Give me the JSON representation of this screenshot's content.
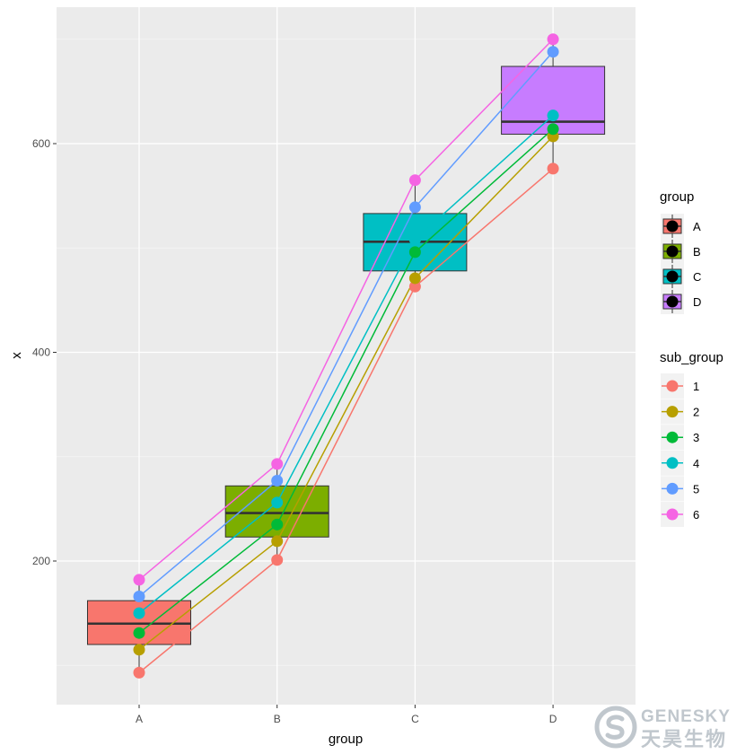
{
  "chart_data": {
    "type": "boxplot",
    "title": "",
    "xlabel": "group",
    "ylabel": "x",
    "ylim": [
      70,
      720
    ],
    "y_ticks": [
      200,
      400,
      600
    ],
    "y_minor_ticks": [
      100,
      300,
      500,
      700
    ],
    "grid": true,
    "categories": [
      "A",
      "B",
      "C",
      "D"
    ],
    "boxes": [
      {
        "group": "A",
        "min": 93,
        "q1": 120,
        "median": 140,
        "q3": 162,
        "max": 182,
        "color": "#F8766D"
      },
      {
        "group": "B",
        "min": 201,
        "q1": 223,
        "median": 246,
        "q3": 272,
        "max": 293,
        "color": "#7CAE00"
      },
      {
        "group": "C",
        "min": 463,
        "q1": 478,
        "median": 506,
        "q3": 533,
        "max": 565,
        "color": "#00BFC4"
      },
      {
        "group": "D",
        "min": 576,
        "q1": 609,
        "median": 621,
        "q3": 674,
        "max": 700,
        "color": "#C77CFF"
      }
    ],
    "series": [
      {
        "name": "1",
        "color": "#F8766D",
        "values": [
          93,
          201,
          463,
          576
        ]
      },
      {
        "name": "2",
        "color": "#B79F00",
        "values": [
          115,
          219,
          471,
          607
        ]
      },
      {
        "name": "3",
        "color": "#00BA38",
        "values": [
          131,
          235,
          496,
          614
        ]
      },
      {
        "name": "4",
        "color": "#00BFC4",
        "values": [
          150,
          256,
          508,
          627
        ]
      },
      {
        "name": "5",
        "color": "#619CFF",
        "values": [
          166,
          277,
          539,
          688
        ]
      },
      {
        "name": "6",
        "color": "#F564E3",
        "values": [
          182,
          293,
          565,
          700
        ]
      }
    ],
    "legends": [
      {
        "title": "group",
        "items": [
          "A",
          "B",
          "C",
          "D"
        ]
      },
      {
        "title": "sub_group",
        "items": [
          "1",
          "2",
          "3",
          "4",
          "5",
          "6"
        ]
      }
    ],
    "legend_position": "right"
  },
  "watermark": {
    "latin": "GENESKY",
    "cjk": "天昊生物"
  }
}
